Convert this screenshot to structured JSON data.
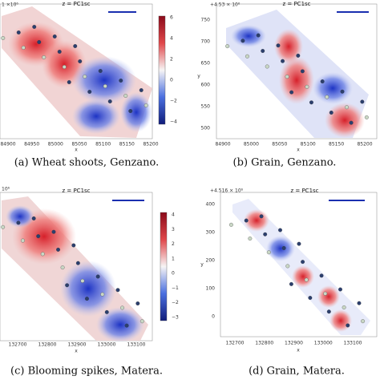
{
  "panels": [
    {
      "offset": "1 ×10⁶",
      "title": "z = PC1sc",
      "xticks": [
        "84900",
        "84950",
        "85000",
        "85050",
        "85100",
        "85150",
        "85200"
      ],
      "xlabel": "x",
      "cbticks": [
        "6",
        "4",
        "2",
        "0",
        "−2",
        "−4"
      ],
      "caption": "(a) Wheat shoots, Genzano."
    },
    {
      "offset": "+4.53 × 10⁶",
      "title": "z = PC1sc",
      "yticks": [
        "750",
        "700",
        "650",
        "600",
        "550",
        "500"
      ],
      "ylabel": "y",
      "xticks": [
        "84900",
        "85000",
        "85050",
        "85100",
        "85150",
        "85200"
      ],
      "xlabel": "x",
      "caption": "(b) Grain, Genzano."
    },
    {
      "offset": "10⁶",
      "title": "z = PC1sc",
      "xticks": [
        "132700",
        "132800",
        "132900",
        "133000",
        "133100"
      ],
      "xlabel": "x",
      "cbticks": [
        "4",
        "3",
        "2",
        "1",
        "0",
        "−1",
        "−2",
        "−3"
      ],
      "caption": "(c) Blooming spikes, Matera."
    },
    {
      "offset": "+4.516 × 10⁶",
      "title": "z = PC1sc",
      "yticks": [
        "400",
        "300",
        "200",
        "100",
        "0"
      ],
      "ylabel": "y",
      "xticks": [
        "132700",
        "132800",
        "132900",
        "133000",
        "133100"
      ],
      "xlabel": "x",
      "caption": "(d) Grain, Matera."
    }
  ]
}
